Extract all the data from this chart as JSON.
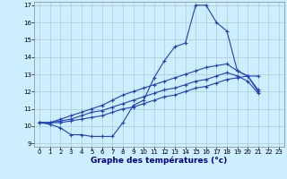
{
  "xlabel": "Graphe des températures (°c)",
  "x_hours": [
    0,
    1,
    2,
    3,
    4,
    5,
    6,
    7,
    8,
    9,
    10,
    11,
    12,
    13,
    14,
    15,
    16,
    17,
    18,
    19,
    20,
    21,
    22,
    23
  ],
  "y1": [
    10.2,
    10.1,
    9.9,
    9.5,
    9.5,
    9.4,
    9.4,
    9.4,
    10.2,
    11.2,
    11.5,
    12.8,
    13.8,
    14.6,
    14.8,
    17.0,
    17.0,
    16.0,
    15.5,
    13.2,
    12.9,
    12.0,
    null,
    null
  ],
  "y2": [
    10.2,
    10.2,
    10.4,
    10.6,
    10.8,
    11.0,
    11.2,
    11.5,
    11.8,
    12.0,
    12.2,
    12.4,
    12.6,
    12.8,
    13.0,
    13.2,
    13.4,
    13.5,
    13.6,
    13.2,
    12.9,
    12.1,
    null,
    null
  ],
  "y3": [
    10.2,
    10.2,
    10.3,
    10.4,
    10.6,
    10.8,
    10.9,
    11.1,
    11.3,
    11.5,
    11.7,
    11.9,
    12.1,
    12.2,
    12.4,
    12.6,
    12.7,
    12.9,
    13.1,
    12.9,
    12.6,
    11.9,
    null,
    null
  ],
  "y4": [
    10.2,
    10.2,
    10.2,
    10.3,
    10.4,
    10.5,
    10.6,
    10.8,
    11.0,
    11.1,
    11.3,
    11.5,
    11.7,
    11.8,
    12.0,
    12.2,
    12.3,
    12.5,
    12.7,
    12.8,
    12.9,
    12.9,
    null,
    null
  ],
  "line_color": "#2040c0",
  "bg_color": "#cceeff",
  "grid_color": "#aacccc",
  "ylim": [
    9,
    17
  ],
  "xlim": [
    -0.5,
    23.5
  ],
  "yticks": [
    9,
    10,
    11,
    12,
    13,
    14,
    15,
    16,
    17
  ],
  "xticks": [
    0,
    1,
    2,
    3,
    4,
    5,
    6,
    7,
    8,
    9,
    10,
    11,
    12,
    13,
    14,
    15,
    16,
    17,
    18,
    19,
    20,
    21,
    22,
    23
  ],
  "tick_fontsize": 5,
  "xlabel_fontsize": 6.5
}
